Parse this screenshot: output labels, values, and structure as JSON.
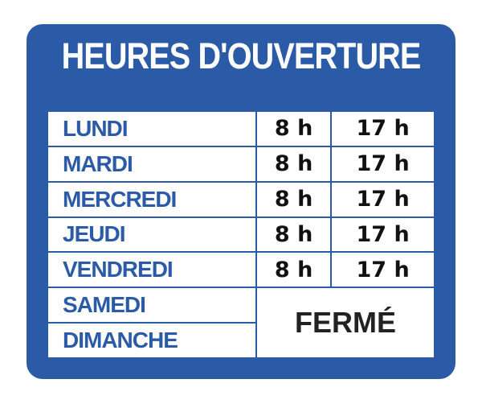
{
  "colors": {
    "sign_blue": "#2b5ba6",
    "text_dark": "#111111",
    "white": "#ffffff"
  },
  "title": "HEURES D'OUVERTURE",
  "schedule": [
    {
      "day": "LUNDI",
      "open": "8 h",
      "close": "17 h"
    },
    {
      "day": "MARDI",
      "open": "8 h",
      "close": "17 h"
    },
    {
      "day": "MERCREDI",
      "open": "8 h",
      "close": "17 h"
    },
    {
      "day": "JEUDI",
      "open": "8 h",
      "close": "17 h"
    },
    {
      "day": "VENDREDI",
      "open": "8 h",
      "close": "17 h"
    },
    {
      "day": "SAMEDI"
    },
    {
      "day": "DIMANCHE"
    }
  ],
  "closed_label": "FERMÉ"
}
